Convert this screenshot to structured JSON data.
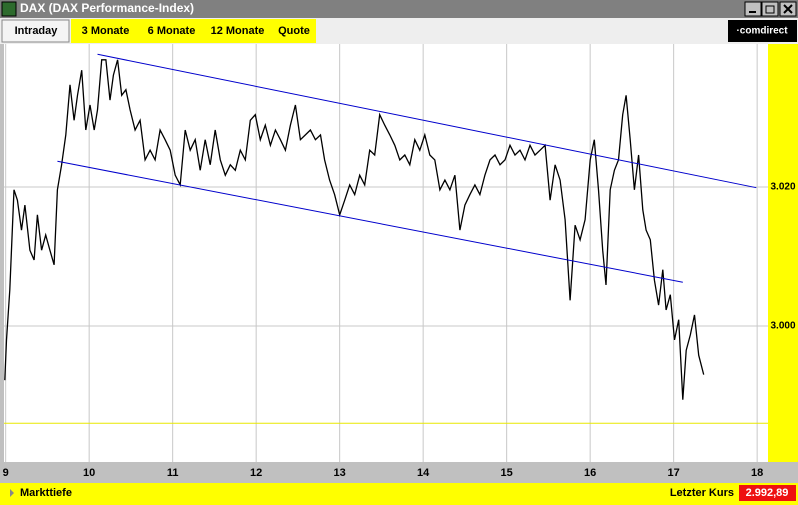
{
  "window": {
    "title": "DAX (DAX Performance-Index)"
  },
  "tabs": [
    "Intraday",
    "3 Monate",
    "6 Monate",
    "12 Monate",
    "Quote"
  ],
  "logo": "·comdirect",
  "chart_data": {
    "type": "line",
    "color": "#000000",
    "x": [
      8.99,
      9.01,
      9.05,
      9.1,
      9.14,
      9.19,
      9.23,
      9.29,
      9.34,
      9.38,
      9.43,
      9.48,
      9.53,
      9.58,
      9.62,
      9.67,
      9.72,
      9.77,
      9.82,
      9.86,
      9.91,
      9.96,
      10.01,
      10.06,
      10.1,
      10.15,
      10.2,
      10.25,
      10.29,
      10.34,
      10.39,
      10.44,
      10.49,
      10.55,
      10.61,
      10.67,
      10.73,
      10.79,
      10.85,
      10.91,
      10.97,
      11.03,
      11.09,
      11.15,
      11.21,
      11.27,
      11.33,
      11.39,
      11.45,
      11.51,
      11.57,
      11.63,
      11.69,
      11.75,
      11.81,
      11.87,
      11.93,
      11.99,
      12.05,
      12.11,
      12.17,
      12.23,
      12.29,
      12.35,
      12.41,
      12.47,
      12.53,
      12.59,
      12.65,
      12.71,
      12.77,
      12.82,
      12.88,
      12.94,
      13.0,
      13.06,
      13.12,
      13.18,
      13.24,
      13.3,
      13.36,
      13.42,
      13.48,
      13.54,
      13.6,
      13.66,
      13.72,
      13.78,
      13.84,
      13.9,
      13.96,
      14.02,
      14.08,
      14.14,
      14.2,
      14.26,
      14.32,
      14.38,
      14.44,
      14.5,
      14.56,
      14.62,
      14.68,
      14.74,
      14.8,
      14.86,
      14.92,
      14.98,
      15.04,
      15.1,
      15.16,
      15.22,
      15.28,
      15.34,
      15.4,
      15.46,
      15.52,
      15.58,
      15.64,
      15.7,
      15.76,
      15.82,
      15.88,
      15.94,
      16.0,
      16.05,
      16.1,
      16.15,
      16.19,
      16.24,
      16.29,
      16.34,
      16.39,
      16.43,
      16.48,
      16.53,
      16.58,
      16.63,
      16.67,
      16.72,
      16.77,
      16.82,
      16.87,
      16.91,
      16.96,
      17.01,
      17.06,
      17.11,
      17.15,
      17.2,
      17.25,
      17.3,
      17.36
    ],
    "values": [
      2992.2,
      2998.0,
      3005.2,
      3019.6,
      3018.1,
      3013.8,
      3017.4,
      3010.9,
      3009.5,
      3016.0,
      3010.9,
      3013.1,
      3010.9,
      3008.8,
      3019.6,
      3023.2,
      3027.5,
      3034.7,
      3029.6,
      3033.2,
      3036.8,
      3028.2,
      3031.8,
      3028.2,
      3031.1,
      3038.3,
      3038.3,
      3032.5,
      3036.1,
      3038.3,
      3033.2,
      3034.0,
      3031.1,
      3028.2,
      3029.6,
      3023.9,
      3025.3,
      3023.9,
      3028.2,
      3026.8,
      3025.3,
      3021.7,
      3020.3,
      3028.2,
      3025.3,
      3026.8,
      3022.4,
      3026.8,
      3023.2,
      3028.2,
      3023.9,
      3021.7,
      3023.2,
      3022.4,
      3025.3,
      3023.9,
      3029.6,
      3030.4,
      3026.8,
      3028.9,
      3026.0,
      3028.2,
      3026.8,
      3025.3,
      3028.9,
      3031.8,
      3026.8,
      3027.5,
      3028.2,
      3026.8,
      3027.5,
      3023.9,
      3021.0,
      3018.9,
      3016.0,
      3018.1,
      3020.3,
      3018.9,
      3021.7,
      3020.3,
      3025.3,
      3024.6,
      3030.4,
      3028.9,
      3027.5,
      3026.0,
      3023.9,
      3024.6,
      3023.2,
      3026.8,
      3025.3,
      3027.5,
      3024.6,
      3023.9,
      3019.6,
      3021.0,
      3019.6,
      3021.7,
      3013.8,
      3017.4,
      3018.9,
      3020.3,
      3018.9,
      3021.7,
      3023.9,
      3024.6,
      3023.2,
      3023.9,
      3026.0,
      3024.6,
      3025.3,
      3023.9,
      3026.0,
      3024.6,
      3025.3,
      3026.0,
      3018.1,
      3023.2,
      3021.0,
      3015.3,
      3003.7,
      3014.5,
      3012.4,
      3015.3,
      3023.9,
      3026.8,
      3019.6,
      3010.9,
      3005.9,
      3019.6,
      3022.4,
      3023.9,
      3030.4,
      3033.2,
      3026.8,
      3019.6,
      3024.6,
      3016.7,
      3013.8,
      3012.4,
      3006.6,
      3003.0,
      3008.1,
      3002.3,
      3004.5,
      2998.0,
      3000.9,
      2989.4,
      2996.5,
      2998.7,
      3001.6,
      2995.8,
      2993.0
    ],
    "xlim": [
      8.98,
      18.13
    ],
    "xticks": [
      9,
      10,
      11,
      12,
      13,
      14,
      15,
      16,
      17,
      18
    ],
    "ylim": [
      2980,
      3040
    ],
    "yticks": [
      {
        "value": 3000,
        "label": "3.000"
      },
      {
        "value": 3020,
        "label": "3.020"
      }
    ],
    "grid": true,
    "trendlines": [
      {
        "color": "#0000cc",
        "x": [
          10.1,
          17.99
        ],
        "y": [
          3039.1,
          3019.9
        ]
      },
      {
        "color": "#0000cc",
        "x": [
          9.62,
          17.11
        ],
        "y": [
          3023.7,
          3006.3
        ]
      }
    ],
    "reference_line": 2986.0,
    "reference_color": "#e8e800"
  },
  "footer": {
    "link": "Markttiefe",
    "last_price_label": "Letzter Kurs",
    "last_price": "2.992,89"
  }
}
